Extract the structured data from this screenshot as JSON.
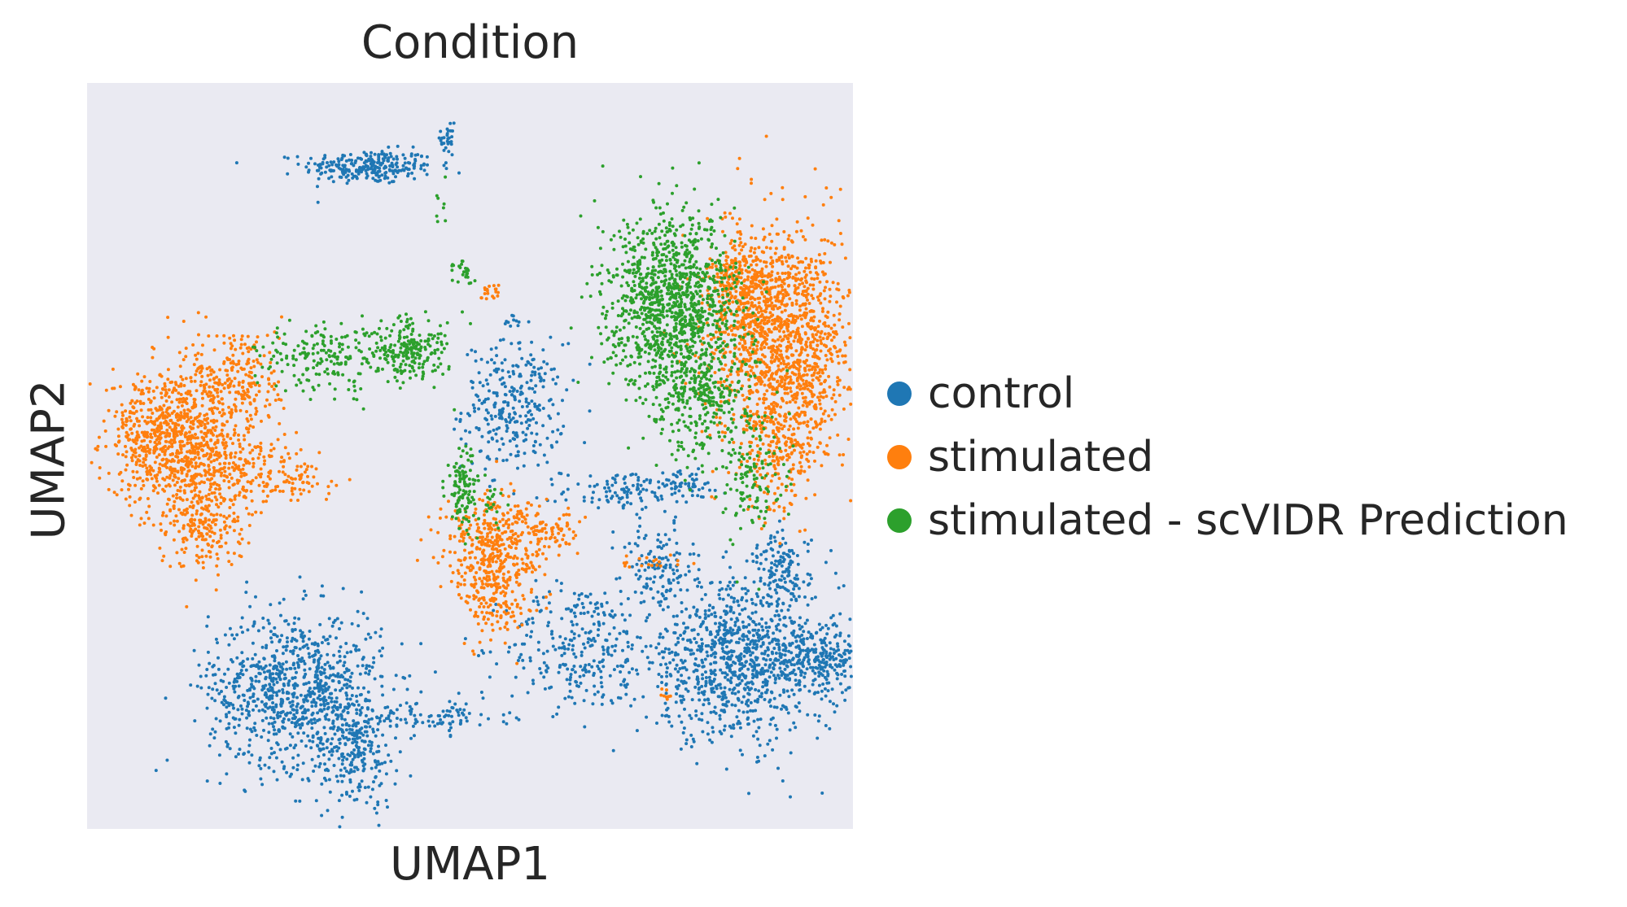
{
  "chart_data": {
    "type": "scatter",
    "title": "Condition",
    "xlabel": "UMAP1",
    "ylabel": "UMAP2",
    "xlim": [
      0,
      10
    ],
    "ylim": [
      0,
      10
    ],
    "grid": false,
    "axes_background": "#eaeaf2",
    "legend_position": "right",
    "series": [
      {
        "name": "control",
        "color": "#1f77b4",
        "clusters": [
          {
            "x": 3.6,
            "y": 9.1,
            "sx": 0.45,
            "sy": 0.12,
            "n": 260
          },
          {
            "x": 4.7,
            "y": 9.5,
            "sx": 0.05,
            "sy": 0.22,
            "n": 30
          },
          {
            "x": 5.6,
            "y": 6.9,
            "sx": 0.1,
            "sy": 0.05,
            "n": 10
          },
          {
            "x": 5.6,
            "y": 5.7,
            "sx": 0.35,
            "sy": 0.45,
            "n": 300
          },
          {
            "x": 7.2,
            "y": 4.5,
            "sx": 0.45,
            "sy": 0.15,
            "n": 120
          },
          {
            "x": 8.0,
            "y": 4.6,
            "sx": 0.2,
            "sy": 0.1,
            "n": 40
          },
          {
            "x": 7.6,
            "y": 3.4,
            "sx": 0.25,
            "sy": 0.3,
            "n": 120
          },
          {
            "x": 6.5,
            "y": 2.3,
            "sx": 0.5,
            "sy": 0.45,
            "n": 260
          },
          {
            "x": 2.6,
            "y": 1.7,
            "sx": 0.6,
            "sy": 0.55,
            "n": 900
          },
          {
            "x": 3.4,
            "y": 0.8,
            "sx": 0.3,
            "sy": 0.4,
            "n": 220
          },
          {
            "x": 4.5,
            "y": 1.3,
            "sx": 0.5,
            "sy": 0.12,
            "n": 100
          },
          {
            "x": 8.7,
            "y": 2.1,
            "sx": 0.7,
            "sy": 0.55,
            "n": 1000
          },
          {
            "x": 10.0,
            "y": 2.1,
            "sx": 0.5,
            "sy": 0.25,
            "n": 300
          },
          {
            "x": 9.3,
            "y": 3.4,
            "sx": 0.2,
            "sy": 0.25,
            "n": 120
          },
          {
            "x": 7.7,
            "y": 1.4,
            "sx": 0.05,
            "sy": 0.05,
            "n": 6
          }
        ]
      },
      {
        "name": "stimulated",
        "color": "#ff7f0e",
        "clusters": [
          {
            "x": 0.9,
            "y": 5.3,
            "sx": 0.45,
            "sy": 0.45,
            "n": 750
          },
          {
            "x": 1.5,
            "y": 4.9,
            "sx": 0.55,
            "sy": 0.3,
            "n": 250
          },
          {
            "x": 1.8,
            "y": 6.1,
            "sx": 0.3,
            "sy": 0.4,
            "n": 220
          },
          {
            "x": 1.3,
            "y": 4.1,
            "sx": 0.3,
            "sy": 0.35,
            "n": 250
          },
          {
            "x": 2.5,
            "y": 4.7,
            "sx": 0.35,
            "sy": 0.15,
            "n": 70
          },
          {
            "x": 5.3,
            "y": 3.6,
            "sx": 0.35,
            "sy": 0.45,
            "n": 450
          },
          {
            "x": 6.0,
            "y": 3.9,
            "sx": 0.25,
            "sy": 0.15,
            "n": 90
          },
          {
            "x": 5.4,
            "y": 2.9,
            "sx": 0.15,
            "sy": 0.25,
            "n": 60
          },
          {
            "x": 5.3,
            "y": 7.3,
            "sx": 0.08,
            "sy": 0.08,
            "n": 20
          },
          {
            "x": 7.6,
            "y": 3.5,
            "sx": 0.3,
            "sy": 0.06,
            "n": 20
          },
          {
            "x": 7.7,
            "y": 1.6,
            "sx": 0.06,
            "sy": 0.05,
            "n": 8
          },
          {
            "x": 9.3,
            "y": 6.7,
            "sx": 0.5,
            "sy": 0.75,
            "n": 1300
          },
          {
            "x": 8.8,
            "y": 7.4,
            "sx": 0.3,
            "sy": 0.3,
            "n": 250
          },
          {
            "x": 9.3,
            "y": 5.2,
            "sx": 0.3,
            "sy": 0.5,
            "n": 280
          }
        ]
      },
      {
        "name": "stimulated - scVIDR Prediction",
        "color": "#2ca02c",
        "clusters": [
          {
            "x": 3.1,
            "y": 6.4,
            "sx": 0.55,
            "sy": 0.25,
            "n": 220
          },
          {
            "x": 4.2,
            "y": 6.5,
            "sx": 0.25,
            "sy": 0.22,
            "n": 180
          },
          {
            "x": 4.9,
            "y": 4.5,
            "sx": 0.1,
            "sy": 0.3,
            "n": 110
          },
          {
            "x": 5.3,
            "y": 4.3,
            "sx": 0.1,
            "sy": 0.15,
            "n": 20
          },
          {
            "x": 4.9,
            "y": 7.6,
            "sx": 0.1,
            "sy": 0.08,
            "n": 25
          },
          {
            "x": 4.6,
            "y": 8.6,
            "sx": 0.05,
            "sy": 0.2,
            "n": 8
          },
          {
            "x": 7.8,
            "y": 7.2,
            "sx": 0.45,
            "sy": 0.6,
            "n": 1100
          },
          {
            "x": 8.2,
            "y": 5.9,
            "sx": 0.4,
            "sy": 0.45,
            "n": 350
          },
          {
            "x": 8.9,
            "y": 4.7,
            "sx": 0.2,
            "sy": 0.4,
            "n": 120
          }
        ]
      }
    ]
  }
}
